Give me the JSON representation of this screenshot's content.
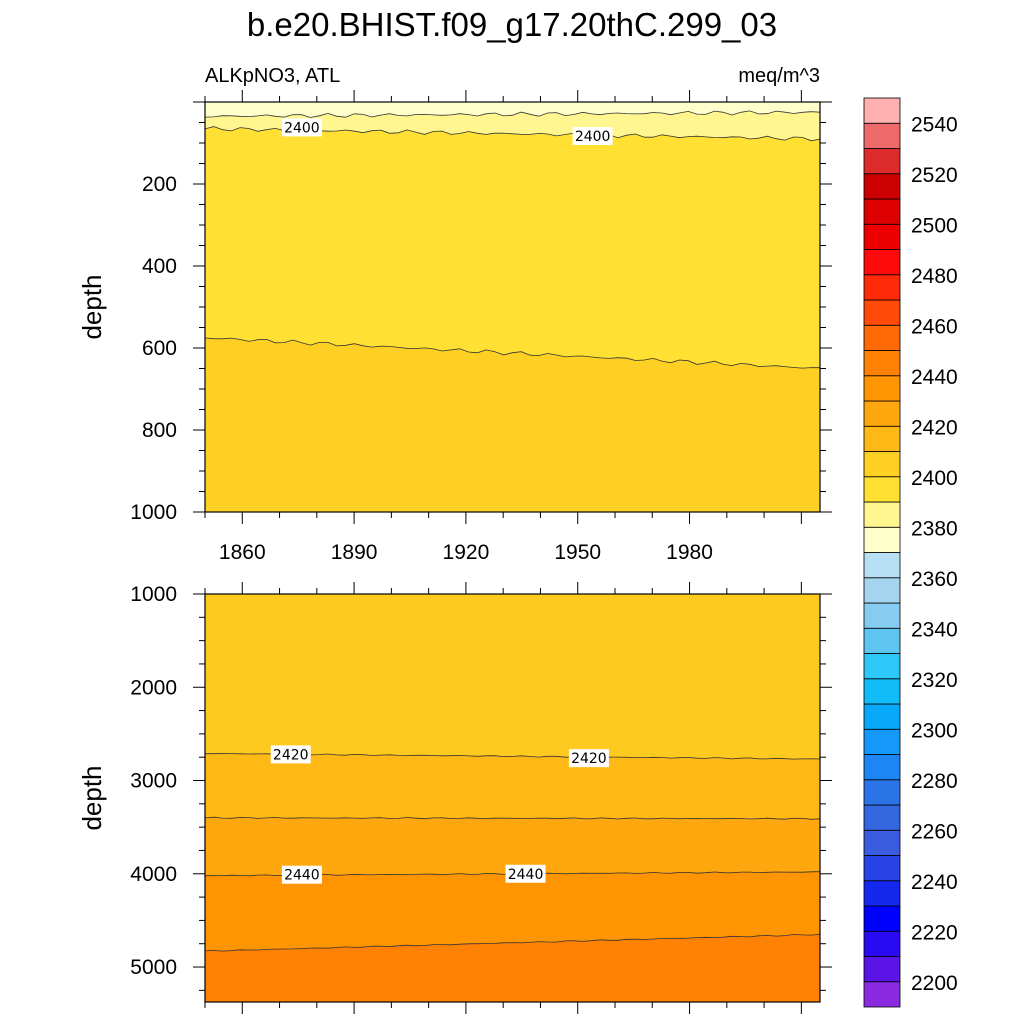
{
  "title": "b.e20.BHIST.f09_g17.20thC.299_03",
  "left_subtitle": "ALKpNO3, ATL",
  "right_subtitle": "meq/m^3",
  "chart_data": [
    {
      "type": "contour",
      "panel": "upper",
      "ylabel": "depth",
      "y_reversed": true,
      "xlim": [
        1850,
        2015
      ],
      "ylim": [
        0,
        1000
      ],
      "x_ticks": [
        1860,
        1890,
        1920,
        1950,
        1980
      ],
      "x_tick_labels": [
        "1860",
        "1890",
        "1920",
        "1950",
        "1980"
      ],
      "y_ticks": [
        200,
        400,
        600,
        800,
        1000
      ],
      "y_tick_labels": [
        "200",
        "400",
        "600",
        "800",
        "1000"
      ],
      "bands": [
        {
          "level_range": [
            2380,
            2390
          ],
          "color": "#FFFFCC"
        },
        {
          "level_range": [
            2390,
            2400
          ],
          "color": "#FFF68F"
        },
        {
          "level_range": [
            2400,
            2410
          ],
          "color": "#FFE033"
        },
        {
          "level_range": [
            2410,
            2420
          ],
          "color": "#FFD024"
        }
      ],
      "contours": [
        {
          "level": 2390,
          "depth_start": 35,
          "depth_end": 25
        },
        {
          "level": 2400,
          "depth_start": 65,
          "depth_end": 90
        },
        {
          "level": 2410,
          "depth_start": 575,
          "depth_end": 650
        }
      ],
      "contour_labels": [
        {
          "text": "2400",
          "x": 1876,
          "depth": 62
        },
        {
          "text": "2400",
          "x": 1954,
          "depth": 83
        }
      ]
    },
    {
      "type": "contour",
      "panel": "lower",
      "ylabel": "depth",
      "y_reversed": true,
      "xlim": [
        1850,
        2015
      ],
      "ylim": [
        1000,
        5375
      ],
      "y_ticks": [
        1000,
        2000,
        3000,
        4000,
        5000
      ],
      "y_tick_labels": [
        "1000",
        "2000",
        "3000",
        "4000",
        "5000"
      ],
      "bands": [
        {
          "level_range": [
            2410,
            2420
          ],
          "color": "#FFCA20"
        },
        {
          "level_range": [
            2420,
            2430
          ],
          "color": "#FFB916"
        },
        {
          "level_range": [
            2430,
            2440
          ],
          "color": "#FFA70E"
        },
        {
          "level_range": [
            2440,
            2450
          ],
          "color": "#FF9503"
        },
        {
          "level_range": [
            2450,
            2460
          ],
          "color": "#FF8204"
        }
      ],
      "contours": [
        {
          "level": 2420,
          "depth_start": 2710,
          "depth_end": 2770
        },
        {
          "level": 2430,
          "depth_start": 3400,
          "depth_end": 3410
        },
        {
          "level": 2440,
          "depth_start": 4020,
          "depth_end": 3980
        },
        {
          "level": 2450,
          "depth_start": 4830,
          "depth_end": 4650
        }
      ],
      "contour_labels": [
        {
          "text": "2420",
          "x": 1873,
          "depth": 2720
        },
        {
          "text": "2420",
          "x": 1953,
          "depth": 2760
        },
        {
          "text": "2440",
          "x": 1876,
          "depth": 4010
        },
        {
          "text": "2440",
          "x": 1936,
          "depth": 4000
        }
      ]
    }
  ],
  "colorbar": {
    "levels": [
      2190,
      2200,
      2210,
      2220,
      2230,
      2240,
      2250,
      2260,
      2270,
      2280,
      2290,
      2300,
      2310,
      2320,
      2330,
      2340,
      2350,
      2360,
      2370,
      2380,
      2390,
      2400,
      2410,
      2420,
      2430,
      2440,
      2450,
      2460,
      2470,
      2480,
      2490,
      2500,
      2510,
      2520,
      2530,
      2540,
      2550,
      2560
    ],
    "labels": [
      "2200",
      "2220",
      "2240",
      "2260",
      "2280",
      "2300",
      "2320",
      "2340",
      "2360",
      "2380",
      "2400",
      "2420",
      "2440",
      "2460",
      "2480",
      "2500",
      "2520",
      "2540"
    ],
    "label_values": [
      2200,
      2220,
      2240,
      2260,
      2280,
      2300,
      2320,
      2340,
      2360,
      2380,
      2400,
      2420,
      2440,
      2460,
      2480,
      2500,
      2520,
      2540
    ],
    "colors": [
      "#8A2BE2",
      "#5A14E6",
      "#2A0AF2",
      "#0000FF",
      "#1428EE",
      "#2844E6",
      "#3A5CE0",
      "#3466DE",
      "#2A74E8",
      "#1E86F4",
      "#1498FA",
      "#08A8FA",
      "#12BCF8",
      "#2EC8F8",
      "#5EC4F2",
      "#86CCF0",
      "#A4D4EE",
      "#B8E0F4",
      "#FFFFCC",
      "#FFF68F",
      "#FFE033",
      "#FFD024",
      "#FFB916",
      "#FFA70E",
      "#FF9503",
      "#FF8204",
      "#FF6A06",
      "#FF4A08",
      "#FF2A08",
      "#FF0A0A",
      "#EE0000",
      "#DD0000",
      "#CC0000",
      "#DD2A2A",
      "#EE6A6A",
      "#FFB0B0"
    ]
  }
}
